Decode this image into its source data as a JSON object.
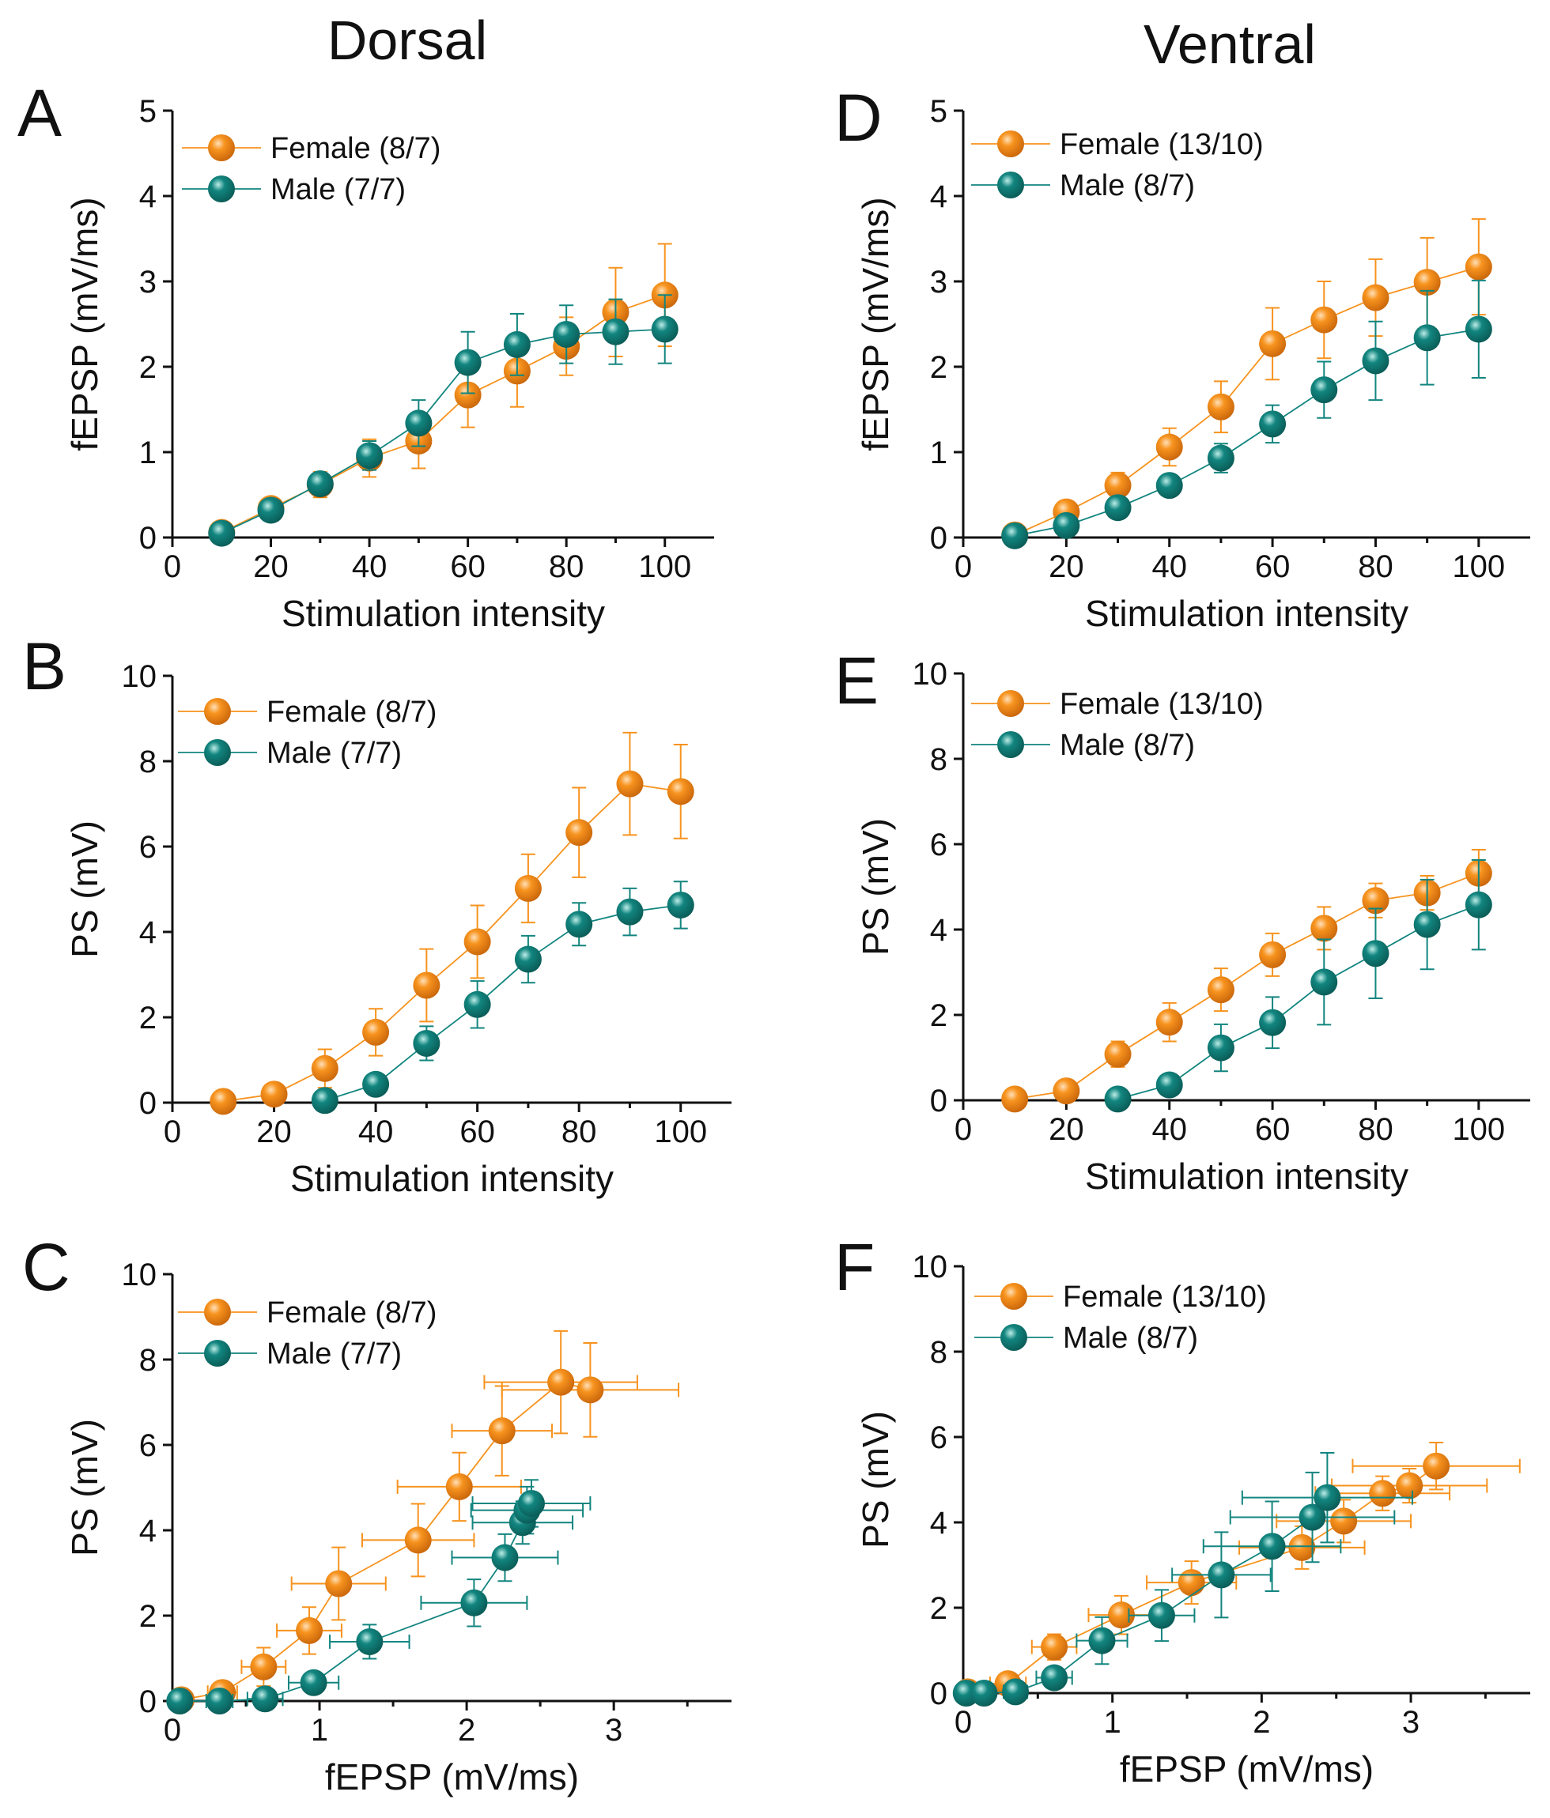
{
  "figure": {
    "column_titles": [
      "Dorsal",
      "Ventral"
    ],
    "colors": {
      "Female": "#F7931E",
      "Male": "#12857F"
    }
  },
  "chart_data": [
    {
      "panel": "A",
      "type": "line",
      "xlabel": "Stimulation intensity",
      "ylabel": "fEPSP (mV/ms)",
      "xlim": [
        0,
        110
      ],
      "ylim": [
        0,
        5
      ],
      "xticks": [
        0,
        20,
        40,
        60,
        80,
        100
      ],
      "yticks": [
        0,
        1,
        2,
        3,
        4,
        5
      ],
      "legend_position": "top-left",
      "series": [
        {
          "name": "Female (8/7)",
          "group": "Female",
          "x": [
            10,
            20,
            30,
            40,
            50,
            60,
            70,
            80,
            90,
            100
          ],
          "y": [
            0.06,
            0.34,
            0.62,
            0.93,
            1.13,
            1.67,
            1.95,
            2.24,
            2.64,
            2.84
          ],
          "yerr": [
            0.03,
            0.1,
            0.15,
            0.22,
            0.32,
            0.38,
            0.42,
            0.34,
            0.52,
            0.6
          ]
        },
        {
          "name": "Male (7/7)",
          "group": "Male",
          "x": [
            10,
            20,
            30,
            40,
            50,
            60,
            70,
            80,
            90,
            100
          ],
          "y": [
            0.05,
            0.32,
            0.63,
            0.96,
            1.34,
            2.05,
            2.26,
            2.38,
            2.41,
            2.44
          ],
          "yerr": [
            0.03,
            0.09,
            0.12,
            0.17,
            0.27,
            0.36,
            0.36,
            0.34,
            0.38,
            0.4
          ]
        }
      ]
    },
    {
      "panel": "B",
      "type": "line",
      "xlabel": "Stimulation intensity",
      "ylabel": "PS (mV)",
      "xlim": [
        0,
        110
      ],
      "ylim": [
        0,
        10
      ],
      "xticks": [
        0,
        20,
        40,
        60,
        80,
        100
      ],
      "yticks": [
        0,
        2,
        4,
        6,
        8,
        10
      ],
      "legend_position": "top-left",
      "series": [
        {
          "name": "Female (8/7)",
          "group": "Female",
          "x": [
            10,
            20,
            30,
            40,
            50,
            60,
            70,
            80,
            90,
            100
          ],
          "y": [
            0.03,
            0.2,
            0.8,
            1.65,
            2.75,
            3.77,
            5.02,
            6.33,
            7.47,
            7.29
          ],
          "yerr": [
            0.02,
            0.2,
            0.45,
            0.55,
            0.85,
            0.85,
            0.8,
            1.05,
            1.2,
            1.1
          ]
        },
        {
          "name": "Male (7/7)",
          "group": "Male",
          "x": [
            30,
            40,
            50,
            60,
            70,
            80,
            90,
            100
          ],
          "y": [
            0.05,
            0.43,
            1.39,
            2.3,
            3.36,
            4.18,
            4.47,
            4.63
          ],
          "yerr": [
            0.03,
            0.12,
            0.4,
            0.55,
            0.55,
            0.5,
            0.55,
            0.55
          ]
        }
      ]
    },
    {
      "panel": "C",
      "type": "scatter",
      "xlabel": "fEPSP (mV/ms)",
      "ylabel": "PS (mV)",
      "xlim": [
        0,
        3.8
      ],
      "ylim": [
        0,
        10
      ],
      "xticks": [
        0,
        1,
        2,
        3
      ],
      "yticks": [
        0,
        2,
        4,
        6,
        8,
        10
      ],
      "legend_position": "top-left",
      "series": [
        {
          "name": "Female (8/7)",
          "group": "Female",
          "x": [
            0.06,
            0.34,
            0.62,
            0.93,
            1.13,
            1.67,
            1.95,
            2.24,
            2.64,
            2.84
          ],
          "y": [
            0.03,
            0.2,
            0.8,
            1.65,
            2.75,
            3.77,
            5.02,
            6.33,
            7.47,
            7.29
          ],
          "xerr": [
            0.03,
            0.1,
            0.15,
            0.22,
            0.32,
            0.38,
            0.42,
            0.34,
            0.52,
            0.6
          ],
          "yerr": [
            0.02,
            0.2,
            0.45,
            0.55,
            0.85,
            0.85,
            0.8,
            1.05,
            1.2,
            1.1
          ]
        },
        {
          "name": "Male (7/7)",
          "group": "Male",
          "x": [
            0.05,
            0.32,
            0.63,
            0.96,
            1.34,
            2.05,
            2.26,
            2.38,
            2.41,
            2.44
          ],
          "y": [
            0.0,
            0.0,
            0.05,
            0.43,
            1.39,
            2.3,
            3.36,
            4.18,
            4.47,
            4.63
          ],
          "xerr": [
            0.03,
            0.09,
            0.12,
            0.17,
            0.27,
            0.36,
            0.36,
            0.34,
            0.38,
            0.4
          ],
          "yerr": [
            0.0,
            0.0,
            0.03,
            0.12,
            0.4,
            0.55,
            0.55,
            0.5,
            0.55,
            0.55
          ]
        }
      ]
    },
    {
      "panel": "D",
      "type": "line",
      "xlabel": "Stimulation intensity",
      "ylabel": "fEPSP (mV/ms)",
      "xlim": [
        0,
        110
      ],
      "ylim": [
        0,
        5
      ],
      "xticks": [
        0,
        20,
        40,
        60,
        80,
        100
      ],
      "yticks": [
        0,
        1,
        2,
        3,
        4,
        5
      ],
      "legend_position": "top-left",
      "series": [
        {
          "name": "Female (13/10)",
          "group": "Female",
          "x": [
            10,
            20,
            30,
            40,
            50,
            60,
            70,
            80,
            90,
            100
          ],
          "y": [
            0.03,
            0.3,
            0.61,
            1.06,
            1.53,
            2.27,
            2.55,
            2.81,
            2.99,
            3.17
          ],
          "yerr": [
            0.02,
            0.12,
            0.15,
            0.22,
            0.3,
            0.42,
            0.45,
            0.45,
            0.52,
            0.56
          ]
        },
        {
          "name": "Male (8/7)",
          "group": "Male",
          "x": [
            10,
            20,
            30,
            40,
            50,
            60,
            70,
            80,
            90,
            100
          ],
          "y": [
            0.02,
            0.14,
            0.35,
            0.61,
            0.93,
            1.33,
            1.73,
            2.07,
            2.34,
            2.44
          ],
          "yerr": [
            0.02,
            0.06,
            0.08,
            0.12,
            0.17,
            0.22,
            0.33,
            0.46,
            0.55,
            0.57
          ]
        }
      ]
    },
    {
      "panel": "E",
      "type": "line",
      "xlabel": "Stimulation intensity",
      "ylabel": "PS (mV)",
      "xlim": [
        0,
        110
      ],
      "ylim": [
        0,
        10
      ],
      "xticks": [
        0,
        20,
        40,
        60,
        80,
        100
      ],
      "yticks": [
        0,
        2,
        4,
        6,
        8,
        10
      ],
      "legend_position": "top-left",
      "series": [
        {
          "name": "Female (13/10)",
          "group": "Female",
          "x": [
            10,
            20,
            30,
            40,
            50,
            60,
            70,
            80,
            90,
            100
          ],
          "y": [
            0.03,
            0.22,
            1.08,
            1.83,
            2.59,
            3.41,
            4.03,
            4.68,
            4.86,
            5.32
          ],
          "yerr": [
            0.02,
            0.1,
            0.3,
            0.45,
            0.5,
            0.5,
            0.5,
            0.4,
            0.4,
            0.55
          ]
        },
        {
          "name": "Male (8/7)",
          "group": "Male",
          "x": [
            30,
            40,
            50,
            60,
            70,
            80,
            90,
            100
          ],
          "y": [
            0.03,
            0.36,
            1.23,
            1.82,
            2.77,
            3.44,
            4.12,
            4.58
          ],
          "yerr": [
            0.02,
            0.1,
            0.55,
            0.6,
            1.0,
            1.05,
            1.05,
            1.05
          ]
        }
      ]
    },
    {
      "panel": "F",
      "type": "scatter",
      "xlabel": "fEPSP (mV/ms)",
      "ylabel": "PS (mV)",
      "xlim": [
        0,
        3.8
      ],
      "ylim": [
        0,
        10
      ],
      "xticks": [
        0,
        1,
        2,
        3
      ],
      "yticks": [
        0,
        2,
        4,
        6,
        8,
        10
      ],
      "legend_position": "top-left",
      "series": [
        {
          "name": "Female (13/10)",
          "group": "Female",
          "x": [
            0.03,
            0.3,
            0.61,
            1.06,
            1.53,
            2.27,
            2.55,
            2.81,
            2.99,
            3.17
          ],
          "y": [
            0.03,
            0.22,
            1.08,
            1.83,
            2.59,
            3.41,
            4.03,
            4.68,
            4.86,
            5.32
          ],
          "xerr": [
            0.02,
            0.12,
            0.15,
            0.22,
            0.3,
            0.42,
            0.45,
            0.45,
            0.52,
            0.56
          ],
          "yerr": [
            0.02,
            0.1,
            0.3,
            0.45,
            0.5,
            0.5,
            0.5,
            0.4,
            0.4,
            0.55
          ]
        },
        {
          "name": "Male (8/7)",
          "group": "Male",
          "x": [
            0.02,
            0.14,
            0.35,
            0.61,
            0.93,
            1.33,
            1.73,
            2.07,
            2.34,
            2.44
          ],
          "y": [
            0.0,
            0.0,
            0.03,
            0.36,
            1.23,
            1.82,
            2.77,
            3.44,
            4.12,
            4.58
          ],
          "xerr": [
            0.02,
            0.06,
            0.08,
            0.12,
            0.17,
            0.22,
            0.33,
            0.46,
            0.55,
            0.57
          ],
          "yerr": [
            0.0,
            0.0,
            0.02,
            0.1,
            0.55,
            0.6,
            1.0,
            1.05,
            1.05,
            1.05
          ]
        }
      ]
    }
  ]
}
